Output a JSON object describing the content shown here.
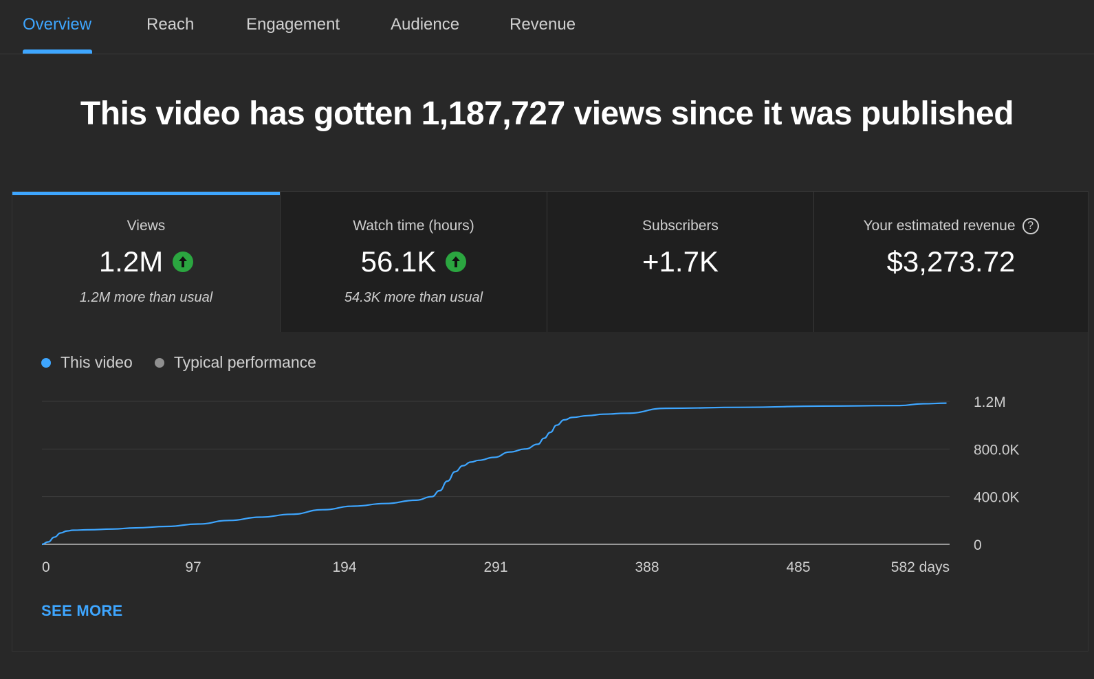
{
  "tabs": [
    {
      "label": "Overview",
      "active": true
    },
    {
      "label": "Reach",
      "active": false
    },
    {
      "label": "Engagement",
      "active": false
    },
    {
      "label": "Audience",
      "active": false
    },
    {
      "label": "Revenue",
      "active": false
    }
  ],
  "headline": "This video has gotten 1,187,727 views since it was published",
  "metrics": [
    {
      "label": "Views",
      "value": "1.2M",
      "trend": "up",
      "sub": "1.2M more than usual"
    },
    {
      "label": "Watch time (hours)",
      "value": "56.1K",
      "trend": "up",
      "sub": "54.3K more than usual"
    },
    {
      "label": "Subscribers",
      "value": "+1.7K",
      "trend": "",
      "sub": ""
    },
    {
      "label": "Your estimated revenue",
      "value": "$3,273.72",
      "trend": "",
      "sub": ""
    }
  ],
  "legend": [
    {
      "label": "This video",
      "color": "#3ea6ff"
    },
    {
      "label": "Typical performance",
      "color": "#909090"
    }
  ],
  "see_more": "SEE MORE",
  "colors": {
    "accent": "#3ea6ff",
    "up": "#2ba640",
    "line": "#3ea6ff"
  },
  "chart_data": {
    "type": "line",
    "xlabel": "",
    "ylabel": "",
    "x_ticks": [
      "0",
      "97",
      "194",
      "291",
      "388",
      "485",
      "582 days"
    ],
    "x_tick_values": [
      0,
      97,
      194,
      291,
      388,
      485,
      582
    ],
    "y_ticks": [
      "0",
      "400.0K",
      "800.0K",
      "1.2M"
    ],
    "y_tick_values": [
      0,
      400000,
      800000,
      1200000
    ],
    "xlim": [
      0,
      582
    ],
    "ylim": [
      0,
      1200000
    ],
    "grid": true,
    "series": [
      {
        "name": "This video",
        "x": [
          0,
          4,
          8,
          12,
          16,
          20,
          30,
          45,
          60,
          80,
          100,
          120,
          140,
          160,
          180,
          200,
          220,
          240,
          250,
          255,
          260,
          265,
          270,
          275,
          280,
          290,
          300,
          310,
          318,
          322,
          326,
          330,
          335,
          340,
          350,
          360,
          375,
          400,
          450,
          500,
          550,
          565,
          580
        ],
        "y": [
          0,
          20000,
          60000,
          95000,
          112000,
          118000,
          122000,
          128000,
          138000,
          150000,
          170000,
          200000,
          228000,
          252000,
          290000,
          320000,
          342000,
          370000,
          400000,
          450000,
          530000,
          610000,
          660000,
          690000,
          705000,
          730000,
          775000,
          800000,
          840000,
          890000,
          940000,
          1000000,
          1045000,
          1065000,
          1080000,
          1092000,
          1100000,
          1142000,
          1150000,
          1160000,
          1165000,
          1180000,
          1185000
        ]
      }
    ]
  }
}
